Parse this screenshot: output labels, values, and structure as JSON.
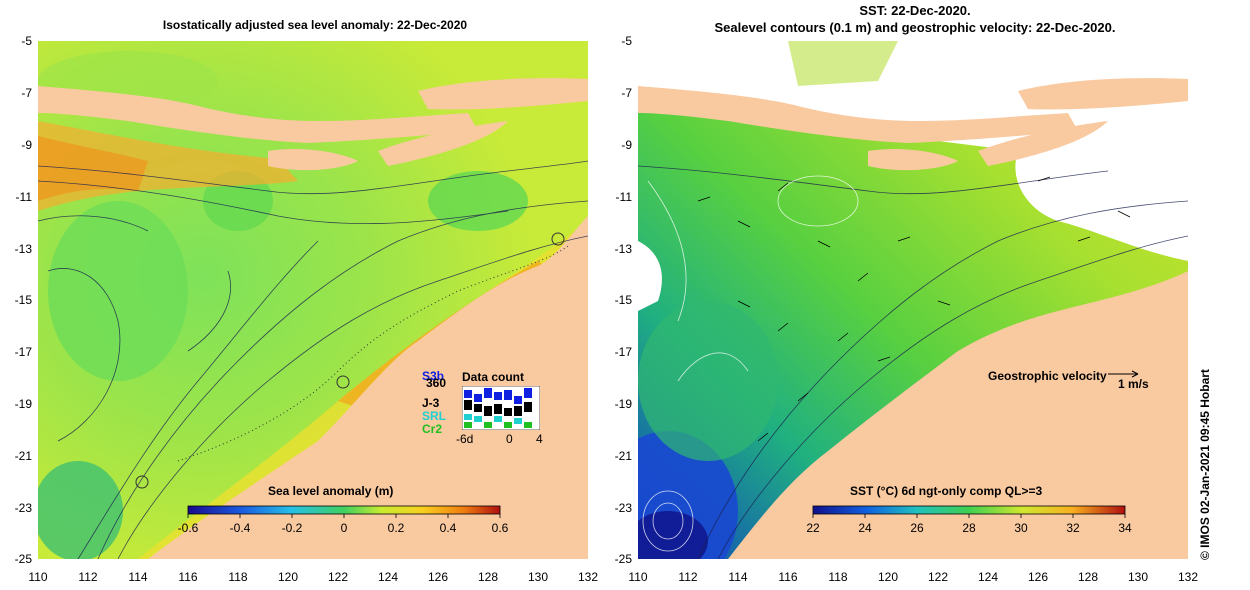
{
  "left_title": "Isostatically adjusted sea level anomaly: 22-Dec-2020",
  "right_title_line1": "SST: 22-Dec-2020.",
  "right_title_line2": "Sealevel contours (0.1 m) and geostrophic velocity: 22-Dec-2020.",
  "y_ticks": [
    "-5",
    "-7",
    "-9",
    "-11",
    "-13",
    "-15",
    "-17",
    "-19",
    "-21",
    "-23",
    "-25"
  ],
  "x_ticks": [
    "110",
    "112",
    "114",
    "116",
    "118",
    "120",
    "122",
    "124",
    "126",
    "128",
    "130",
    "132"
  ],
  "left_colorbar": {
    "title": "Sea level anomaly (m)",
    "labels": [
      "-0.6",
      "-0.4",
      "-0.2",
      "0",
      "0.2",
      "0.4",
      "0.6"
    ]
  },
  "right_colorbar": {
    "title": "SST (°C) 6d ngt-only comp QL>=3",
    "labels": [
      "22",
      "24",
      "26",
      "28",
      "30",
      "32",
      "34"
    ]
  },
  "data_count": {
    "title": "Data count",
    "satellites": [
      "S3b",
      "360",
      "J-3",
      "SRL",
      "Cr2"
    ],
    "axis_labels": [
      "-6d",
      "0",
      "4"
    ],
    "sat_colors": [
      "#1020e0",
      "#000000",
      "#000000",
      "#20d0d0",
      "#20c020"
    ]
  },
  "geostrophic": {
    "label": "Geostrophic velocity",
    "scale": "1 m/s"
  },
  "credit": "© IMOS 02-Jan-2021 09:45 Hobart",
  "colors": {
    "land": "#f9c9a0",
    "white": "#ffffff"
  }
}
